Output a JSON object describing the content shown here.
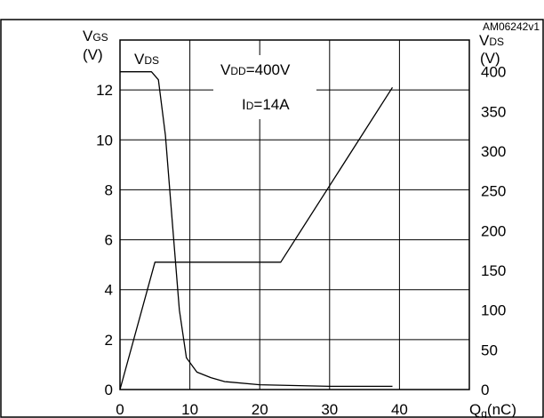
{
  "header": {
    "title": "",
    "code": "AM06242v1"
  },
  "chart_data": {
    "type": "line",
    "x": {
      "label": {
        "main": "Q",
        "sub": "g",
        "unit": "(nC)"
      },
      "range": [
        0,
        50
      ],
      "ticks": [
        0,
        10,
        20,
        30,
        40
      ]
    },
    "y_left": {
      "label": {
        "main": "V",
        "sub": "GS",
        "unit": "(V)"
      },
      "range": [
        0,
        14
      ],
      "ticks": [
        0,
        2,
        4,
        6,
        8,
        10,
        12
      ]
    },
    "y_right": {
      "label": {
        "main": "V",
        "sub": "DS",
        "unit": "(V)"
      },
      "range": [
        0,
        440
      ],
      "ticks": [
        0,
        50,
        100,
        150,
        200,
        250,
        300,
        350,
        400
      ]
    },
    "grid": true,
    "annotations": {
      "series_label": {
        "main": "V",
        "sub": "DS"
      },
      "condition_1": {
        "main": "V",
        "sub": "DD",
        "rest": "=400V"
      },
      "condition_2": {
        "main": "I",
        "sub": "D",
        "rest": "=14A"
      }
    },
    "series": [
      {
        "axis": "left",
        "points": [
          [
            0,
            0
          ],
          [
            5,
            5.1
          ],
          [
            23,
            5.1
          ],
          [
            39,
            12.1
          ]
        ]
      },
      {
        "axis": "right",
        "points": [
          [
            0,
            400
          ],
          [
            4.5,
            400
          ],
          [
            5.5,
            390
          ],
          [
            6.5,
            320
          ],
          [
            7.5,
            210
          ],
          [
            8.5,
            100
          ],
          [
            9.5,
            40
          ],
          [
            11,
            22
          ],
          [
            13,
            15
          ],
          [
            15,
            10
          ],
          [
            20,
            6
          ],
          [
            30,
            4
          ],
          [
            39,
            4
          ]
        ]
      }
    ]
  }
}
